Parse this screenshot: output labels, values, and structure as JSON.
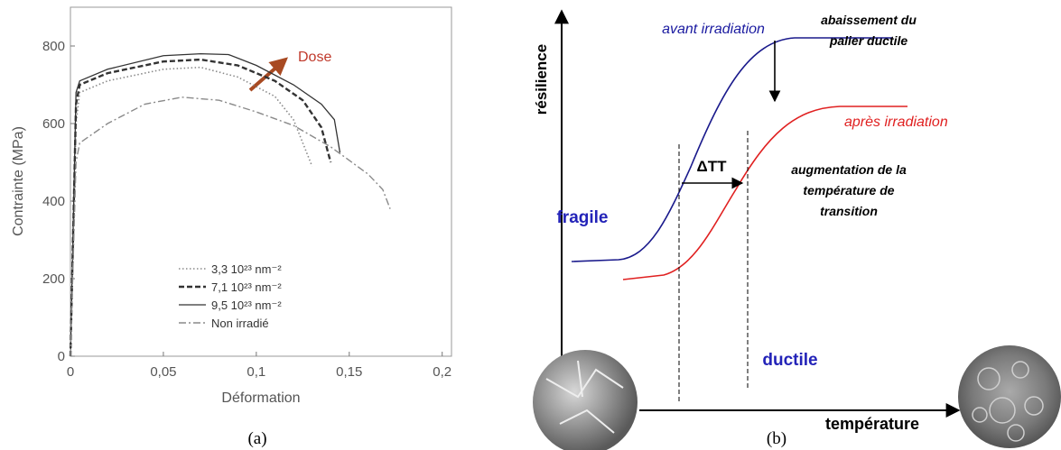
{
  "chart_data": {
    "type": "line",
    "ylabel": "Contrainte (MPa)",
    "xlabel": "Déformation",
    "annotations": [
      "Dose"
    ],
    "xlim": [
      0,
      0.205
    ],
    "ylim": [
      0,
      900
    ],
    "xticks": [
      0,
      {
        "value": 0.05,
        "label": "0,05"
      },
      {
        "value": 0.1,
        "label": "0,1"
      },
      {
        "value": 0.15,
        "label": "0,15"
      },
      {
        "value": 0.2,
        "label": "0,2"
      }
    ],
    "yticks": [
      0,
      200,
      400,
      600,
      800
    ],
    "legend": "lower center",
    "series": [
      {
        "name": "3,3 10²³ nm⁻²",
        "color": "#8a8a8a",
        "linestyle": "dotted",
        "x": [
          0,
          0.003,
          0.005,
          0.02,
          0.05,
          0.07,
          0.09,
          0.11,
          0.12,
          0.13
        ],
        "values": [
          0,
          600,
          680,
          710,
          740,
          745,
          720,
          670,
          610,
          490
        ]
      },
      {
        "name": "7,1 10²³ nm⁻²",
        "color": "#333333",
        "linestyle": "dashed",
        "x": [
          0,
          0.003,
          0.005,
          0.02,
          0.05,
          0.07,
          0.09,
          0.11,
          0.125,
          0.135,
          0.14
        ],
        "values": [
          0,
          650,
          700,
          730,
          760,
          765,
          750,
          710,
          660,
          590,
          500
        ]
      },
      {
        "name": "9,5 10²³ nm⁻²",
        "color": "#333333",
        "linestyle": "solid",
        "x": [
          0,
          0.003,
          0.005,
          0.02,
          0.05,
          0.07,
          0.085,
          0.1,
          0.12,
          0.135,
          0.142,
          0.145
        ],
        "values": [
          0,
          680,
          710,
          740,
          775,
          780,
          778,
          750,
          700,
          650,
          610,
          525
        ]
      },
      {
        "name": "Non irradié",
        "color": "#8a8a8a",
        "linestyle": "dashdot",
        "x": [
          0,
          0.003,
          0.005,
          0.02,
          0.04,
          0.06,
          0.08,
          0.1,
          0.12,
          0.14,
          0.16,
          0.168,
          0.172
        ],
        "values": [
          0,
          500,
          550,
          600,
          650,
          668,
          660,
          630,
          595,
          540,
          470,
          430,
          380
        ]
      }
    ]
  },
  "diagram": {
    "y_axis_label": "résilience",
    "x_axis_label": "température",
    "curve_before": "avant irradiation",
    "curve_after": "après irradiation",
    "upper_note": [
      "abaissement du",
      "palier ductile"
    ],
    "left_region": "fragile",
    "right_region": "ductile",
    "shift": "ΔTT",
    "shift_note": [
      "augmentation de la",
      "température de",
      "transition"
    ]
  },
  "captions": [
    "(a)",
    "(b)"
  ]
}
